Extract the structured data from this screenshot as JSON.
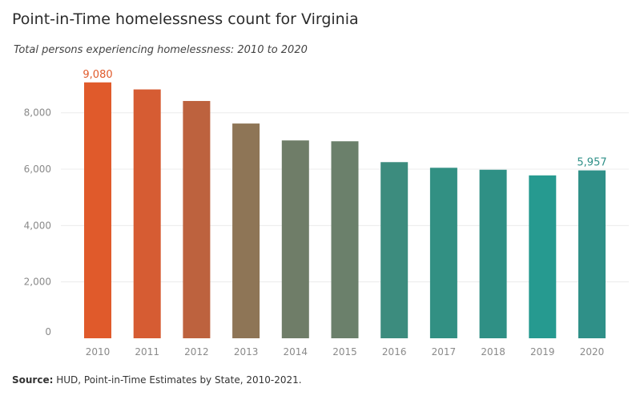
{
  "chart_data": {
    "type": "bar",
    "title": "Point-in-Time homelessness count for Virginia",
    "subtitle": "Total persons experiencing homelessness: 2010 to 2020",
    "categories": [
      "2010",
      "2011",
      "2012",
      "2013",
      "2014",
      "2015",
      "2016",
      "2017",
      "2018",
      "2019",
      "2020"
    ],
    "values": [
      9080,
      8830,
      8420,
      7620,
      7020,
      6990,
      6250,
      6050,
      5980,
      5780,
      5957
    ],
    "colors": [
      "#e05a2b",
      "#d65c33",
      "#bd623e",
      "#8e7556",
      "#6f7d68",
      "#6b806b",
      "#3c8c7e",
      "#329083",
      "#2f9085",
      "#269a90",
      "#2f9088"
    ],
    "ylim": [
      0,
      9500
    ],
    "yticks": [
      0,
      2000,
      4000,
      6000,
      8000
    ],
    "ytick_labels": [
      "0",
      "2,000",
      "4,000",
      "6,000",
      "8,000"
    ],
    "xlabel": "",
    "ylabel": "",
    "grid": true,
    "annotations": [
      {
        "category": "2010",
        "text": "9,080",
        "color": "#e05a2b"
      },
      {
        "category": "2020",
        "text": "5,957",
        "color": "#2f9088"
      }
    ]
  },
  "source": {
    "label": "Source:",
    "text": " HUD, Point-in-Time Estimates by State, 2010-2021."
  }
}
